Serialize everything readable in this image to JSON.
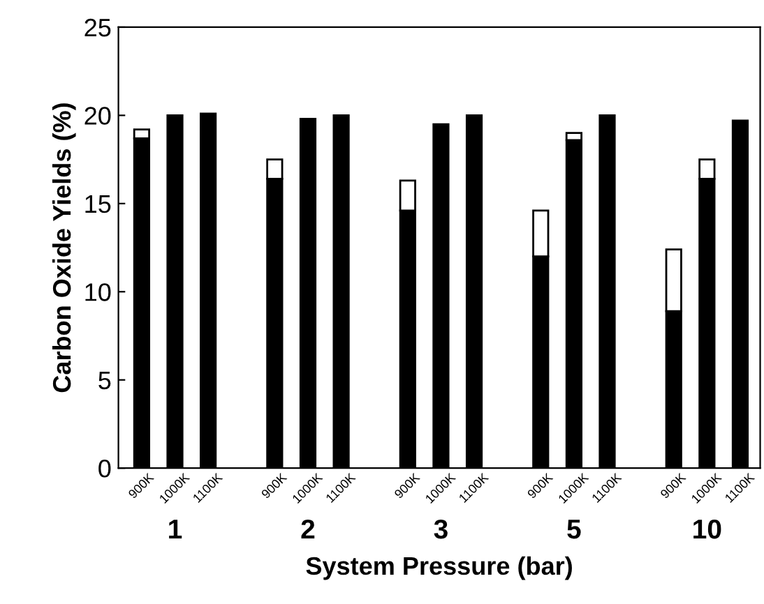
{
  "chart_data": {
    "type": "bar",
    "stacked": true,
    "xlabel": "System Pressure (bar)",
    "ylabel": "Carbon Oxide Yields (%)",
    "categories": [
      "900K",
      "1000K",
      "1100K",
      null,
      "900K",
      "1000K",
      "1100K",
      null,
      "900K",
      "1000K",
      "1100K",
      null,
      "900K",
      "1000K",
      "1100K",
      null,
      "900K",
      "1000K",
      "1100K"
    ],
    "series": [
      {
        "color": "#000000",
        "values": [
          18.7,
          20.0,
          20.1,
          null,
          16.4,
          19.8,
          20.0,
          null,
          14.6,
          19.5,
          20.0,
          null,
          12.0,
          18.6,
          20.0,
          null,
          8.9,
          16.4,
          19.7
        ]
      },
      {
        "color": "#ffffff",
        "values": [
          0.5,
          null,
          null,
          null,
          1.1,
          null,
          null,
          null,
          1.7,
          null,
          null,
          null,
          2.6,
          0.4,
          null,
          null,
          3.5,
          1.1,
          null
        ]
      }
    ],
    "annotations": [
      "1",
      "2",
      "3",
      "5",
      "10"
    ],
    "ylim": [
      0,
      25
    ],
    "yticks": [
      0,
      5,
      10,
      15,
      20,
      25
    ],
    "grid": false,
    "legend": false
  }
}
